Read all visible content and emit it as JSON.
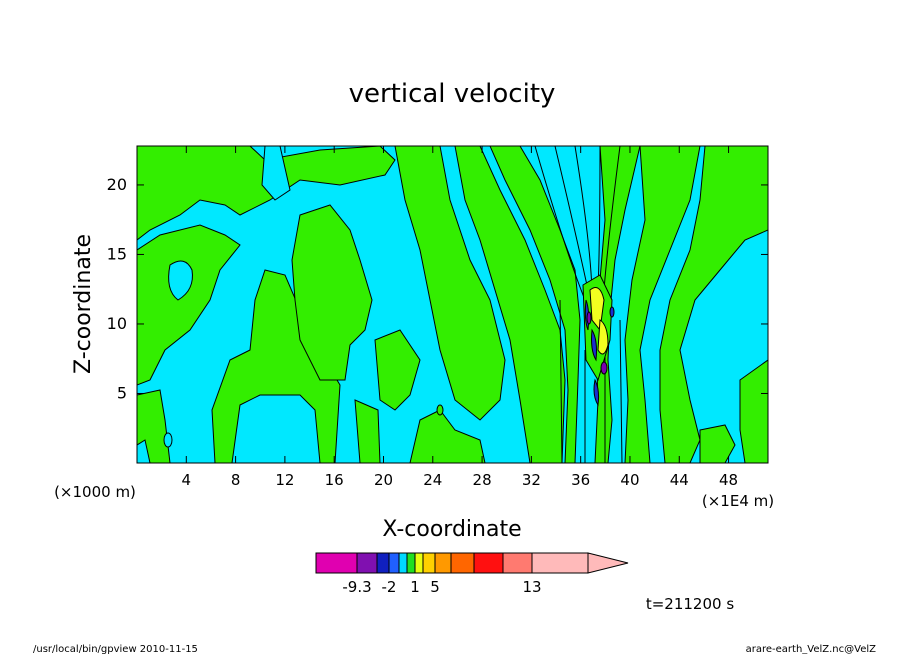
{
  "chart_data": {
    "type": "heatmap",
    "title": "vertical velocity",
    "xlabel": "X-coordinate",
    "ylabel": "Z-coordinate",
    "x_unit_left": "(×1000 m)",
    "x_unit_right": "(×1E4 m)",
    "xlim": [
      0,
      51.2
    ],
    "ylim": [
      0,
      22.8
    ],
    "x_ticks": [
      4,
      8,
      12,
      16,
      20,
      24,
      28,
      32,
      36,
      40,
      44,
      48
    ],
    "y_ticks": [
      5,
      10,
      15,
      20
    ],
    "grid": false,
    "colorbar": {
      "colors": [
        "#e000b0",
        "#8010b0",
        "#1020c0",
        "#2060ff",
        "#00d8ff",
        "#20e020",
        "#e8ff10",
        "#ffd000",
        "#ff9900",
        "#ff6600",
        "#ff1010",
        "#ff7a70",
        "#ffbaba"
      ],
      "labels": [
        {
          "text": "-9.3",
          "boundary": 1
        },
        {
          "text": "-2",
          "boundary": 3
        },
        {
          "text": "1",
          "boundary": 6
        },
        {
          "text": "5",
          "boundary": 8
        },
        {
          "text": "13",
          "boundary": 12
        }
      ]
    },
    "field_colors": {
      "background": "#00e8ff",
      "positive": "#33ee00",
      "strong_positive": "#f2ff20",
      "negative": "#1a2fd0",
      "strong_negative": "#7a00b0",
      "contour": "#000000"
    },
    "time_label": "t=211200 s"
  },
  "footer": {
    "left": "/usr/local/bin/gpview  2010-11-15",
    "right": "arare-earth_VelZ.nc@VelZ"
  }
}
